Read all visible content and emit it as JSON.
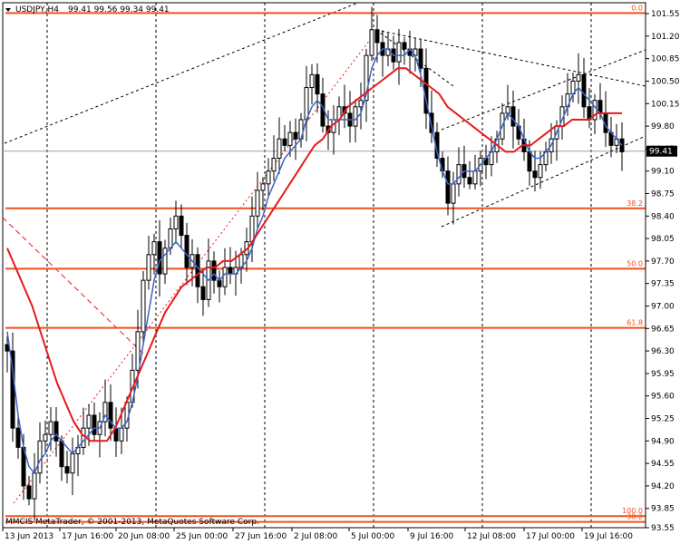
{
  "header": {
    "symbol": "USDJPY,H4",
    "ohlc": "99.41 99.56 99.34 99.41"
  },
  "footer": {
    "copyright": "MMCIS MetaTrader, © 2001-2013, MetaQuotes Software Corp."
  },
  "colors": {
    "background": "#ffffff",
    "candle": "#000000",
    "fib_line": "#f0501e",
    "fast_ma": "#3c64c8",
    "slow_ma": "#e81a1a",
    "grid": "#000000",
    "channel": "#000000",
    "trend_red": "#e81a1a",
    "price_tag_bg": "#000000",
    "price_tag_text": "#ffffff"
  },
  "chart_data": {
    "type": "candlestick",
    "title": "USDJPY,H4",
    "ylim": [
      93.55,
      101.72
    ],
    "y_ticks": [
      "101.55",
      "101.20",
      "100.85",
      "100.50",
      "100.15",
      "99.80",
      "99.45",
      "99.10",
      "98.75",
      "98.40",
      "98.05",
      "97.70",
      "97.35",
      "97.00",
      "96.65",
      "96.30",
      "95.95",
      "95.60",
      "95.25",
      "94.90",
      "94.55",
      "94.20",
      "93.85",
      "93.55"
    ],
    "x_labels": [
      "13 Jun 2013",
      "17 Jun 16:00",
      "20 Jun 08:00",
      "25 Jun 00:00",
      "27 Jun 16:00",
      "2 Jul 08:00",
      "5 Jul 00:00",
      "9 Jul 16:00",
      "12 Jul 08:00",
      "17 Jul 00:00",
      "19 Jul 16:00"
    ],
    "current_price": "99.41",
    "fib_levels": [
      {
        "label": "0.0",
        "price": 101.56
      },
      {
        "label": "38.2",
        "price": 98.52
      },
      {
        "label": "50.0",
        "price": 97.58
      },
      {
        "label": "61.8",
        "price": 96.66
      },
      {
        "label": "100.0",
        "price": 93.73
      },
      {
        "label": "38.2",
        "price": 93.64
      }
    ],
    "series": [
      {
        "name": "close",
        "values": [
          96.3,
          95.1,
          94.8,
          94.2,
          94.0,
          94.4,
          94.9,
          95.0,
          95.2,
          94.9,
          94.5,
          94.4,
          94.7,
          94.8,
          95.1,
          95.3,
          95.0,
          95.2,
          95.5,
          95.1,
          94.9,
          95.1,
          95.5,
          96.0,
          96.6,
          97.4,
          97.8,
          98.0,
          97.5,
          97.9,
          98.2,
          98.4,
          98.1,
          97.6,
          97.8,
          97.3,
          97.1,
          97.7,
          97.4,
          97.3,
          97.6,
          97.5,
          97.6,
          97.8,
          98.0,
          98.4,
          98.8,
          98.9,
          99.1,
          99.3,
          99.6,
          99.5,
          99.7,
          99.6,
          99.9,
          100.4,
          100.6,
          100.3,
          99.8,
          99.7,
          99.9,
          100.1,
          100.0,
          99.8,
          100.1,
          100.2,
          100.9,
          101.3,
          101.1,
          100.9,
          101.0,
          100.8,
          101.1,
          101.0,
          100.9,
          101.0,
          100.7,
          100.0,
          99.7,
          99.3,
          99.1,
          98.6,
          98.9,
          99.2,
          99.0,
          98.9,
          99.1,
          99.3,
          99.2,
          99.4,
          99.6,
          100.0,
          100.1,
          99.8,
          99.6,
          99.4,
          99.1,
          99.0,
          99.2,
          99.4,
          99.6,
          99.8,
          100.1,
          100.3,
          100.5,
          100.6,
          100.1,
          99.9,
          100.2,
          100.0,
          99.7,
          99.5,
          99.6,
          99.4
        ]
      },
      {
        "name": "fast_ma",
        "values": [
          96.6,
          96.0,
          95.3,
          94.8,
          94.5,
          94.4,
          94.6,
          94.7,
          94.9,
          95.0,
          94.9,
          94.8,
          94.7,
          94.8,
          94.9,
          95.0,
          95.1,
          95.1,
          95.3,
          95.2,
          95.1,
          95.1,
          95.2,
          95.5,
          95.9,
          96.4,
          96.9,
          97.4,
          97.7,
          97.8,
          97.9,
          98.0,
          97.9,
          97.8,
          97.7,
          97.6,
          97.5,
          97.4,
          97.5,
          97.4,
          97.5,
          97.5,
          97.5,
          97.6,
          97.7,
          97.9,
          98.2,
          98.4,
          98.7,
          98.9,
          99.1,
          99.3,
          99.4,
          99.5,
          99.6,
          99.9,
          100.1,
          100.2,
          100.1,
          99.9,
          99.9,
          99.9,
          99.9,
          99.9,
          99.9,
          100.0,
          100.3,
          100.7,
          100.9,
          101.0,
          101.0,
          100.9,
          100.9,
          100.9,
          101.0,
          100.9,
          100.6,
          100.2,
          99.8,
          99.4,
          99.1,
          98.9,
          98.9,
          99.0,
          99.1,
          99.1,
          99.1,
          99.2,
          99.3,
          99.4,
          99.6,
          99.8,
          100.0,
          99.9,
          99.8,
          99.6,
          99.4,
          99.3,
          99.3,
          99.4,
          99.5,
          99.7,
          99.9,
          100.1,
          100.3,
          100.4,
          100.3,
          100.2,
          100.1,
          100.0,
          99.8,
          99.7,
          99.6,
          99.5
        ]
      },
      {
        "name": "slow_ma",
        "values": [
          97.9,
          97.6,
          97.3,
          97.0,
          96.6,
          96.2,
          95.8,
          95.5,
          95.2,
          95.0,
          94.9,
          94.9,
          94.9,
          95.1,
          95.4,
          95.7,
          96.0,
          96.3,
          96.6,
          96.9,
          97.1,
          97.3,
          97.4,
          97.5,
          97.6,
          97.6,
          97.7,
          97.7,
          97.8,
          97.9,
          98.1,
          98.3,
          98.5,
          98.7,
          98.9,
          99.1,
          99.3,
          99.5,
          99.6,
          99.8,
          99.9,
          100.1,
          100.2,
          100.3,
          100.4,
          100.5,
          100.6,
          100.7,
          100.7,
          100.6,
          100.5,
          100.4,
          100.3,
          100.1,
          100.0,
          99.9,
          99.8,
          99.7,
          99.6,
          99.5,
          99.4,
          99.4,
          99.5,
          99.5,
          99.6,
          99.7,
          99.8,
          99.8,
          99.9,
          99.9,
          99.9,
          100.0,
          100.0,
          100.0,
          100.0
        ]
      }
    ]
  }
}
